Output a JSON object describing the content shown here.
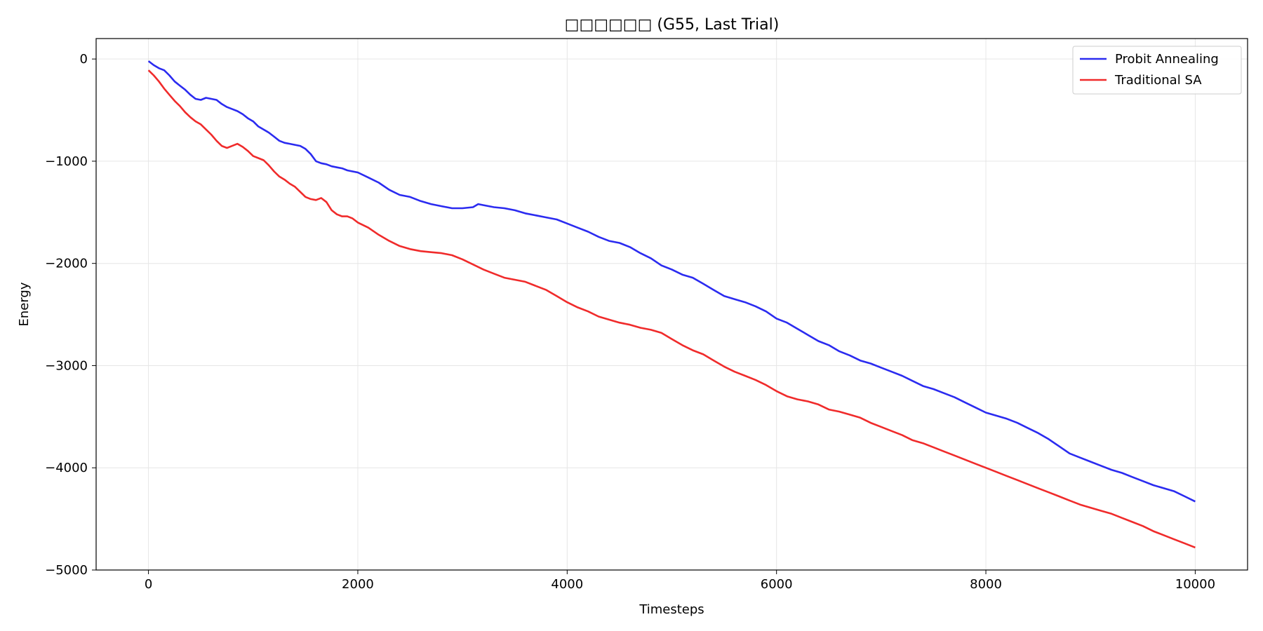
{
  "chart_data": {
    "type": "line",
    "title": "□□□□□□ (G55, Last Trial)",
    "xlabel": "Timesteps",
    "ylabel": "Energy",
    "xlim": [
      -500,
      10500
    ],
    "ylim": [
      -5000,
      200
    ],
    "x_ticks": [
      0,
      2000,
      4000,
      6000,
      8000,
      10000
    ],
    "x_tick_labels": [
      "0",
      "2000",
      "4000",
      "6000",
      "8000",
      "10000"
    ],
    "y_ticks": [
      0,
      -1000,
      -2000,
      -3000,
      -4000,
      -5000
    ],
    "y_tick_labels": [
      "0",
      "−1000",
      "−2000",
      "−3000",
      "−4000",
      "−5000"
    ],
    "grid": true,
    "legend": "top-right",
    "series": [
      {
        "name": "Probit Annealing",
        "color": "#2b2bf0",
        "x": [
          0,
          50,
          100,
          150,
          200,
          250,
          300,
          350,
          400,
          450,
          500,
          550,
          600,
          650,
          700,
          750,
          800,
          850,
          900,
          950,
          1000,
          1050,
          1100,
          1150,
          1200,
          1250,
          1300,
          1350,
          1400,
          1450,
          1500,
          1550,
          1600,
          1650,
          1700,
          1750,
          1800,
          1850,
          1900,
          1950,
          2000,
          2100,
          2200,
          2300,
          2400,
          2500,
          2600,
          2700,
          2800,
          2900,
          3000,
          3100,
          3150,
          3200,
          3300,
          3400,
          3500,
          3600,
          3700,
          3800,
          3900,
          4000,
          4100,
          4200,
          4300,
          4400,
          4500,
          4600,
          4700,
          4800,
          4900,
          5000,
          5100,
          5200,
          5300,
          5400,
          5500,
          5600,
          5700,
          5800,
          5900,
          6000,
          6100,
          6200,
          6300,
          6400,
          6500,
          6600,
          6700,
          6800,
          6900,
          7000,
          7100,
          7200,
          7300,
          7400,
          7500,
          7600,
          7700,
          7800,
          7900,
          8000,
          8100,
          8200,
          8300,
          8400,
          8500,
          8600,
          8700,
          8800,
          8900,
          9000,
          9100,
          9200,
          9300,
          9400,
          9500,
          9600,
          9700,
          9800,
          9900,
          10000
        ],
        "y": [
          -20,
          -60,
          -90,
          -110,
          -160,
          -220,
          -260,
          -300,
          -350,
          -390,
          -400,
          -380,
          -390,
          -400,
          -440,
          -470,
          -490,
          -510,
          -540,
          -580,
          -610,
          -660,
          -690,
          -720,
          -760,
          -800,
          -820,
          -830,
          -840,
          -850,
          -880,
          -930,
          -1000,
          -1020,
          -1030,
          -1050,
          -1060,
          -1070,
          -1090,
          -1100,
          -1110,
          -1160,
          -1210,
          -1280,
          -1330,
          -1350,
          -1390,
          -1420,
          -1440,
          -1460,
          -1460,
          -1450,
          -1420,
          -1430,
          -1450,
          -1460,
          -1480,
          -1510,
          -1530,
          -1550,
          -1570,
          -1610,
          -1650,
          -1690,
          -1740,
          -1780,
          -1800,
          -1840,
          -1900,
          -1950,
          -2020,
          -2060,
          -2110,
          -2140,
          -2200,
          -2260,
          -2320,
          -2350,
          -2380,
          -2420,
          -2470,
          -2540,
          -2580,
          -2640,
          -2700,
          -2760,
          -2800,
          -2860,
          -2900,
          -2950,
          -2980,
          -3020,
          -3060,
          -3100,
          -3150,
          -3200,
          -3230,
          -3270,
          -3310,
          -3360,
          -3410,
          -3460,
          -3490,
          -3520,
          -3560,
          -3610,
          -3660,
          -3720,
          -3790,
          -3860,
          -3900,
          -3940,
          -3980,
          -4020,
          -4050,
          -4090,
          -4130,
          -4170,
          -4200,
          -4230,
          -4280,
          -4330
        ]
      },
      {
        "name": "Traditional SA",
        "color": "#f02b2b",
        "x": [
          0,
          50,
          100,
          150,
          200,
          250,
          300,
          350,
          400,
          450,
          500,
          550,
          600,
          650,
          700,
          750,
          800,
          850,
          900,
          950,
          1000,
          1050,
          1100,
          1150,
          1200,
          1250,
          1300,
          1350,
          1400,
          1450,
          1500,
          1550,
          1600,
          1650,
          1700,
          1750,
          1800,
          1850,
          1900,
          1950,
          2000,
          2100,
          2200,
          2300,
          2400,
          2500,
          2600,
          2700,
          2800,
          2900,
          3000,
          3100,
          3200,
          3300,
          3400,
          3500,
          3600,
          3700,
          3800,
          3900,
          4000,
          4100,
          4200,
          4300,
          4400,
          4500,
          4600,
          4700,
          4800,
          4900,
          5000,
          5100,
          5200,
          5300,
          5400,
          5500,
          5600,
          5700,
          5800,
          5900,
          6000,
          6100,
          6200,
          6300,
          6400,
          6500,
          6600,
          6700,
          6800,
          6900,
          7000,
          7100,
          7200,
          7300,
          7400,
          7500,
          7600,
          7700,
          7800,
          7900,
          8000,
          8100,
          8200,
          8300,
          8400,
          8500,
          8600,
          8700,
          8800,
          8900,
          9000,
          9100,
          9200,
          9300,
          9400,
          9500,
          9600,
          9700,
          9800,
          9900,
          10000
        ],
        "y": [
          -110,
          -160,
          -220,
          -290,
          -350,
          -410,
          -460,
          -520,
          -570,
          -610,
          -640,
          -690,
          -740,
          -800,
          -850,
          -870,
          -850,
          -830,
          -860,
          -900,
          -950,
          -970,
          -990,
          -1040,
          -1100,
          -1150,
          -1180,
          -1220,
          -1250,
          -1300,
          -1350,
          -1370,
          -1380,
          -1360,
          -1400,
          -1480,
          -1520,
          -1540,
          -1540,
          -1560,
          -1600,
          -1650,
          -1720,
          -1780,
          -1830,
          -1860,
          -1880,
          -1890,
          -1900,
          -1920,
          -1960,
          -2010,
          -2060,
          -2100,
          -2140,
          -2160,
          -2180,
          -2220,
          -2260,
          -2320,
          -2380,
          -2430,
          -2470,
          -2520,
          -2550,
          -2580,
          -2600,
          -2630,
          -2650,
          -2680,
          -2740,
          -2800,
          -2850,
          -2890,
          -2950,
          -3010,
          -3060,
          -3100,
          -3140,
          -3190,
          -3250,
          -3300,
          -3330,
          -3350,
          -3380,
          -3430,
          -3450,
          -3480,
          -3510,
          -3560,
          -3600,
          -3640,
          -3680,
          -3730,
          -3760,
          -3800,
          -3840,
          -3880,
          -3920,
          -3960,
          -4000,
          -4040,
          -4080,
          -4120,
          -4160,
          -4200,
          -4240,
          -4280,
          -4320,
          -4360,
          -4390,
          -4420,
          -4450,
          -4490,
          -4530,
          -4570,
          -4620,
          -4660,
          -4700,
          -4740,
          -4780
        ]
      }
    ]
  }
}
